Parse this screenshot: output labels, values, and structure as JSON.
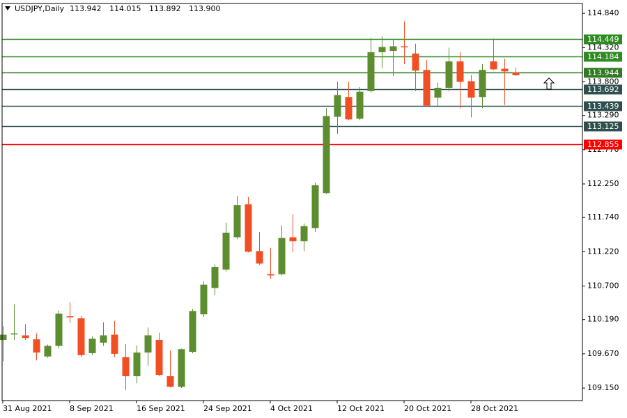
{
  "chart_data": {
    "type": "candlestick",
    "title": "USDJPY,Daily",
    "ohlc_labels": [
      "113.942",
      "114.015",
      "113.892",
      "113.900"
    ],
    "categories": [
      "31 Aug 2021",
      null,
      null,
      null,
      null,
      null,
      "8 Sep 2021",
      null,
      null,
      null,
      null,
      null,
      "16 Sep 2021",
      null,
      null,
      null,
      null,
      null,
      "24 Sep 2021",
      null,
      null,
      null,
      null,
      null,
      "4 Oct 2021",
      null,
      null,
      null,
      null,
      null,
      "12 Oct 2021",
      null,
      null,
      null,
      null,
      null,
      "20 Oct 2021",
      null,
      null,
      null,
      null,
      null,
      "28 Oct 2021",
      null,
      null,
      null,
      null
    ],
    "open": [
      109.88,
      109.97,
      109.95,
      109.89,
      109.63,
      109.79,
      110.24,
      110.21,
      109.68,
      109.84,
      109.96,
      109.62,
      109.33,
      109.69,
      109.88,
      109.33,
      109.17,
      109.7,
      110.27,
      110.67,
      110.95,
      111.44,
      111.94,
      111.23,
      110.88,
      110.88,
      111.44,
      111.38,
      111.58,
      112.11,
      113.27,
      113.57,
      113.24,
      113.66,
      114.25,
      114.27,
      114.34,
      114.23,
      113.98,
      113.56,
      113.71,
      114.11,
      113.81,
      113.57,
      114.11,
      114.0,
      113.942
    ],
    "high": [
      110.09,
      110.42,
      110.12,
      109.98,
      109.81,
      110.33,
      110.45,
      110.25,
      109.93,
      110.15,
      110.17,
      109.82,
      109.8,
      110.07,
      109.99,
      109.72,
      109.75,
      110.35,
      110.77,
      111.03,
      111.66,
      112.07,
      112.05,
      111.52,
      111.28,
      111.62,
      111.79,
      111.65,
      112.27,
      113.4,
      113.8,
      113.8,
      113.72,
      114.47,
      114.49,
      114.44,
      114.72,
      114.38,
      114.13,
      113.79,
      114.32,
      114.25,
      113.9,
      114.07,
      114.46,
      114.15,
      114.015
    ],
    "low": [
      109.56,
      109.88,
      109.88,
      109.57,
      109.61,
      109.75,
      110.14,
      109.62,
      109.65,
      109.79,
      109.62,
      109.12,
      109.22,
      109.49,
      109.33,
      109.16,
      109.15,
      109.68,
      110.23,
      110.56,
      110.92,
      111.41,
      111.21,
      111.02,
      110.81,
      110.86,
      111.21,
      111.23,
      111.52,
      112.1,
      113.01,
      113.22,
      113.22,
      113.64,
      114.01,
      113.89,
      114.07,
      113.66,
      113.43,
      113.44,
      113.66,
      113.4,
      113.26,
      113.4,
      113.98,
      113.45,
      113.892
    ],
    "close": [
      109.96,
      109.98,
      109.91,
      109.69,
      109.79,
      110.28,
      110.23,
      109.65,
      109.9,
      109.95,
      109.67,
      109.33,
      109.69,
      109.95,
      109.35,
      109.17,
      109.74,
      110.32,
      110.72,
      110.99,
      111.51,
      111.93,
      111.22,
      111.04,
      110.86,
      111.43,
      111.38,
      111.61,
      112.23,
      113.28,
      113.6,
      113.23,
      113.65,
      114.25,
      114.33,
      114.34,
      114.33,
      113.97,
      113.44,
      113.71,
      114.11,
      113.8,
      113.56,
      113.98,
      113.99,
      113.96,
      113.9
    ],
    "bull_color": "#5c8d2f",
    "bear_color": "#f24e23",
    "levels": [
      {
        "value": 114.449,
        "color": "#2e8b22"
      },
      {
        "value": 114.184,
        "color": "#2e8b22"
      },
      {
        "value": 113.944,
        "color": "#2f7a22"
      },
      {
        "value": 113.692,
        "color": "#2f4f4f"
      },
      {
        "value": 113.439,
        "color": "#2f4f4f"
      },
      {
        "value": 113.125,
        "color": "#2f4f4f"
      },
      {
        "value": 112.855,
        "color": "#ff0000"
      }
    ],
    "ylim": [
      108.96,
      114.99
    ],
    "yticks": [
      {
        "value": 114.84,
        "label": "114.840"
      },
      {
        "value": 114.32,
        "label": "114.320"
      },
      {
        "value": 113.8,
        "label": "113.800"
      },
      {
        "value": 113.29,
        "label": "113.290"
      },
      {
        "value": 112.77,
        "label": "112.770"
      },
      {
        "value": 112.25,
        "label": "112.250"
      },
      {
        "value": 111.74,
        "label": "111.740"
      },
      {
        "value": 111.22,
        "label": "111.220"
      },
      {
        "value": 110.7,
        "label": "110.700"
      },
      {
        "value": 110.19,
        "label": "110.190"
      },
      {
        "value": 109.67,
        "label": "109.670"
      },
      {
        "value": 109.15,
        "label": "109.150"
      }
    ]
  }
}
